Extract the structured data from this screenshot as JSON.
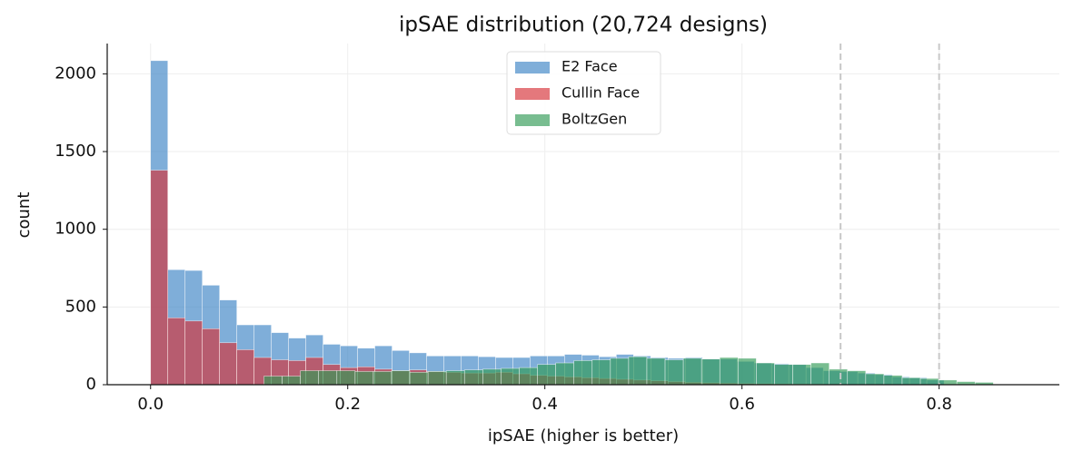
{
  "chart_data": {
    "type": "histogram",
    "title": "ipSAE distribution (20,724 designs)",
    "xlabel": "ipSAE (higher is better)",
    "ylabel": "count",
    "xlim": [
      -0.044,
      0.922
    ],
    "ylim": [
      0,
      2195
    ],
    "xticks": [
      {
        "value": 0,
        "label": "0.0"
      },
      {
        "value": 0.2,
        "label": "0.2"
      },
      {
        "value": 0.4,
        "label": "0.4"
      },
      {
        "value": 0.6,
        "label": "0.6"
      },
      {
        "value": 0.8,
        "label": "0.8"
      }
    ],
    "yticks": [
      0,
      500,
      1000,
      1500,
      2000
    ],
    "grid": true,
    "legend": "upper center",
    "alpha": 0.65,
    "vlines": [
      0.7,
      0.8
    ],
    "series": [
      {
        "name": "E2 Face",
        "color": "#3b82c4",
        "bins": [
          0,
          0.0175,
          0.035,
          0.0525,
          0.07,
          0.0875,
          0.105,
          0.1225,
          0.14,
          0.1575,
          0.175,
          0.1925,
          0.21,
          0.2275,
          0.245,
          0.2625,
          0.28,
          0.2975,
          0.315,
          0.3325,
          0.35,
          0.3675,
          0.385,
          0.4025,
          0.42,
          0.4375,
          0.455,
          0.4725,
          0.49,
          0.5075,
          0.525,
          0.5425,
          0.56,
          0.5775,
          0.595,
          0.6125,
          0.63,
          0.6475,
          0.665,
          0.6825,
          0.7,
          0.7175,
          0.735,
          0.7525,
          0.77,
          0.7875,
          0.805
        ],
        "values": [
          2085,
          740,
          735,
          640,
          545,
          385,
          385,
          335,
          300,
          320,
          260,
          250,
          235,
          250,
          220,
          205,
          185,
          185,
          185,
          180,
          175,
          175,
          185,
          185,
          195,
          190,
          180,
          195,
          185,
          175,
          170,
          175,
          165,
          165,
          150,
          140,
          135,
          130,
          110,
          90,
          85,
          75,
          65,
          50,
          45,
          30
        ]
      },
      {
        "name": "Cullin Face",
        "color": "#d62f36",
        "bins": [
          0,
          0.0175,
          0.035,
          0.0525,
          0.07,
          0.0875,
          0.105,
          0.1225,
          0.14,
          0.1575,
          0.175,
          0.1925,
          0.21,
          0.2275,
          0.245,
          0.2625,
          0.28,
          0.2975,
          0.315,
          0.3325,
          0.35,
          0.3675,
          0.385,
          0.4025,
          0.42,
          0.4375,
          0.455,
          0.4725,
          0.49,
          0.5075,
          0.525,
          0.5425,
          0.56,
          0.5775,
          0.595,
          0.6125,
          0.63,
          0.6475,
          0.665,
          0.6825,
          0.7,
          0.7175,
          0.735,
          0.7525,
          0.77,
          0.7875,
          0.805
        ],
        "values": [
          1380,
          430,
          410,
          360,
          270,
          225,
          175,
          160,
          155,
          175,
          130,
          110,
          115,
          100,
          90,
          95,
          85,
          80,
          75,
          75,
          80,
          70,
          60,
          55,
          50,
          45,
          40,
          35,
          30,
          25,
          20,
          15,
          12,
          10,
          8,
          6,
          5,
          4,
          3,
          2,
          1,
          1,
          1,
          0,
          0,
          0
        ]
      },
      {
        "name": "BoltzGen",
        "color": "#2f9a55",
        "bins": [
          0.115,
          0.1335,
          0.152,
          0.1705,
          0.189,
          0.2075,
          0.226,
          0.2445,
          0.263,
          0.2815,
          0.3,
          0.3185,
          0.337,
          0.3555,
          0.374,
          0.3925,
          0.411,
          0.4295,
          0.448,
          0.4665,
          0.485,
          0.5035,
          0.522,
          0.5405,
          0.559,
          0.5775,
          0.596,
          0.6145,
          0.633,
          0.6515,
          0.67,
          0.6885,
          0.707,
          0.7255,
          0.744,
          0.7625,
          0.781,
          0.7995,
          0.818,
          0.8365,
          0.855
        ],
        "values": [
          55,
          55,
          90,
          90,
          90,
          85,
          85,
          90,
          80,
          85,
          90,
          95,
          100,
          105,
          110,
          130,
          140,
          155,
          160,
          170,
          180,
          170,
          160,
          170,
          165,
          175,
          170,
          140,
          130,
          130,
          140,
          100,
          90,
          70,
          60,
          45,
          40,
          30,
          20,
          15
        ]
      }
    ]
  }
}
